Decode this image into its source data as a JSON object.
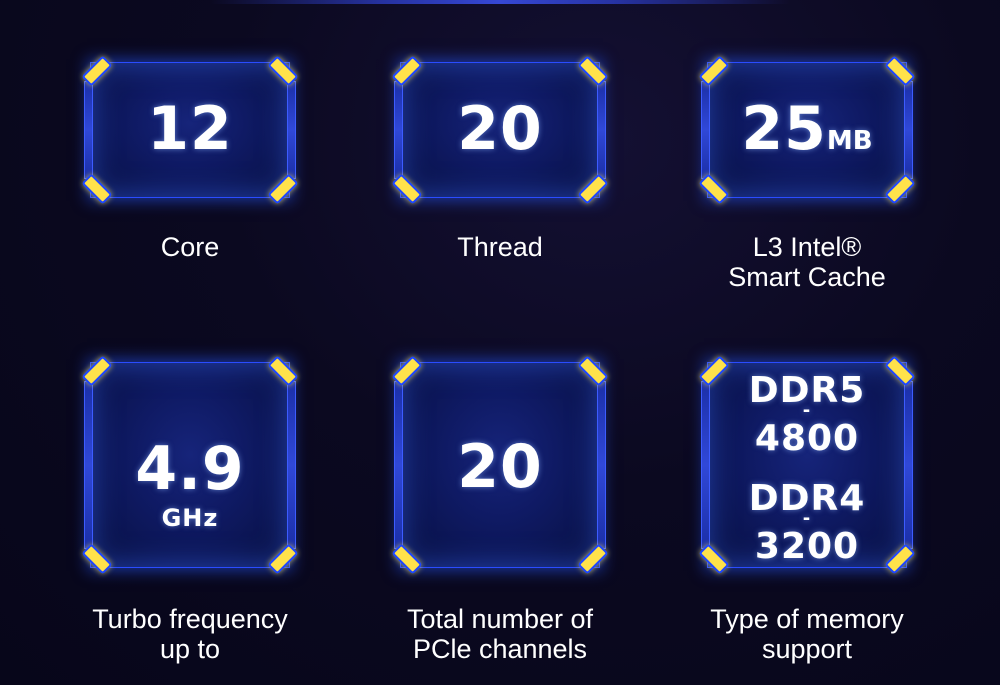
{
  "specs": [
    {
      "value": "12",
      "label_lines": [
        "Core"
      ]
    },
    {
      "value": "20",
      "label_lines": [
        "Thread"
      ]
    },
    {
      "value": "25",
      "unit": "MB",
      "label_lines": [
        "L3 Intel®",
        "Smart Cache"
      ]
    },
    {
      "value": "4.9",
      "unit": "GHz",
      "label_lines": [
        "Turbo frequency",
        "up to"
      ]
    },
    {
      "value": "20",
      "label_lines": [
        "Total number of",
        "PCle channels"
      ]
    },
    {
      "memory": [
        {
          "type": "DDR5",
          "speed": "4800"
        },
        {
          "type": "DDR4",
          "speed": "3200"
        }
      ],
      "label_lines": [
        "Type of memory",
        "support"
      ]
    }
  ],
  "colors": {
    "accent_yellow": "#ffe24a",
    "tile_blue": "#1d46ff",
    "background": "#0b0920"
  }
}
